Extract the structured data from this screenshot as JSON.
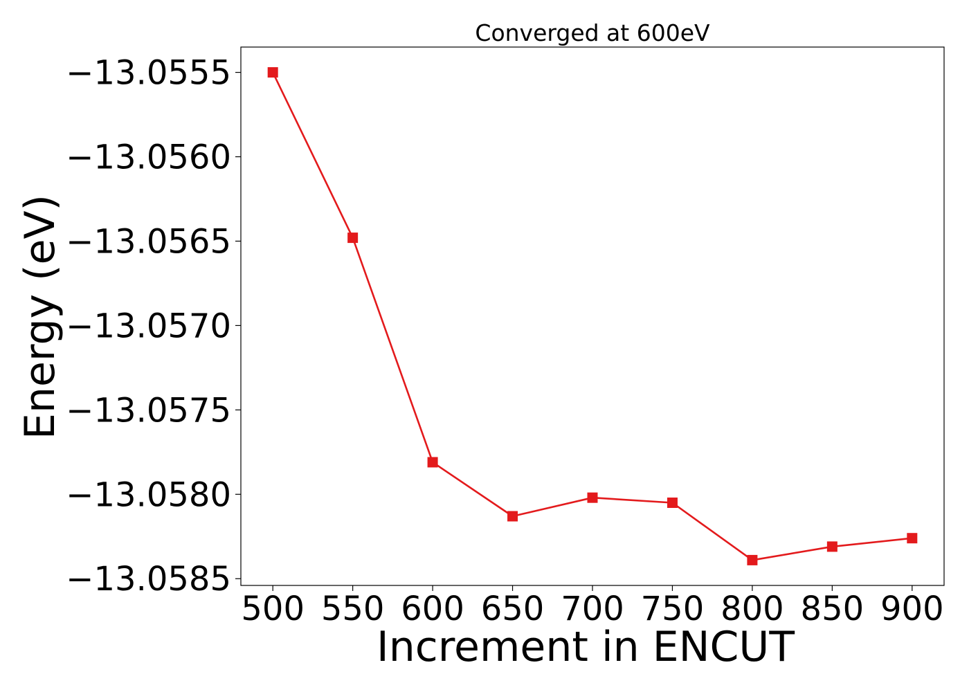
{
  "chart_data": {
    "type": "line",
    "title": "Converged at 600eV",
    "xlabel": "Increment in ENCUT",
    "ylabel": "Energy (eV)",
    "x": [
      500,
      550,
      600,
      650,
      700,
      750,
      800,
      850,
      900
    ],
    "series": [
      {
        "color": "#e31a1c",
        "marker": "square",
        "values": [
          -13.0555,
          -13.05648,
          -13.05781,
          -13.05813,
          -13.05802,
          -13.05805,
          -13.05839,
          -13.05831,
          -13.05826
        ]
      }
    ],
    "xticks": [
      500,
      550,
      600,
      650,
      700,
      750,
      800,
      850,
      900
    ],
    "xtick_labels": [
      "500",
      "550",
      "600",
      "650",
      "700",
      "750",
      "800",
      "850",
      "900"
    ],
    "yticks": [
      -13.0555,
      -13.056,
      -13.0565,
      -13.057,
      -13.0575,
      -13.058,
      -13.0585
    ],
    "ytick_labels": [
      "−13.0555",
      "−13.0560",
      "−13.0565",
      "−13.0570",
      "−13.0575",
      "−13.0580",
      "−13.0585"
    ],
    "xlim": [
      480,
      920
    ],
    "ylim": [
      -13.05854,
      -13.05535
    ],
    "grid": false,
    "legend": false
  }
}
